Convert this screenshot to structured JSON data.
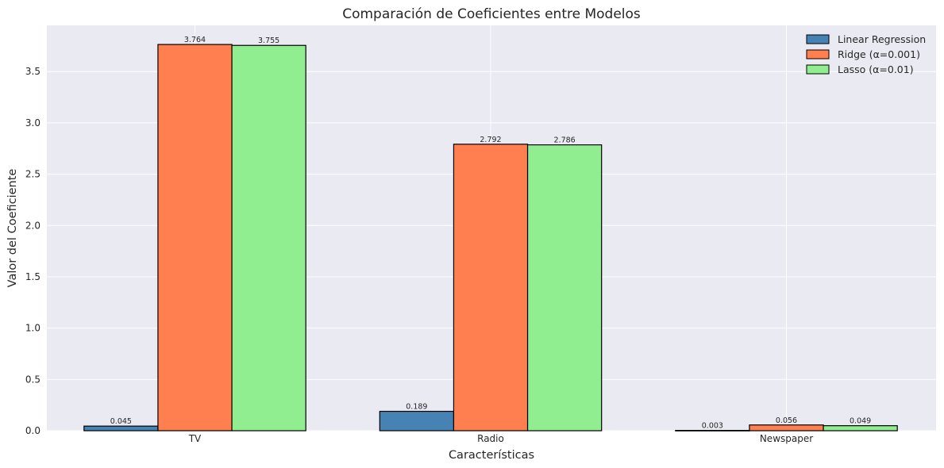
{
  "chart_data": {
    "type": "bar",
    "title": "Comparación de Coeficientes entre Modelos",
    "xlabel": "Características",
    "ylabel": "Valor del Coeficiente",
    "categories": [
      "TV",
      "Radio",
      "Newspaper"
    ],
    "series": [
      {
        "name": "Linear Regression",
        "values": [
          0.045,
          0.189,
          0.003
        ],
        "labels": [
          "0.045",
          "0.189",
          "0.003"
        ],
        "color": "#4682B4"
      },
      {
        "name": "Ridge (α=0.001)",
        "values": [
          3.764,
          2.792,
          0.056
        ],
        "labels": [
          "3.764",
          "2.792",
          "0.056"
        ],
        "color": "#FF7F50"
      },
      {
        "name": "Lasso (α=0.01)",
        "values": [
          3.755,
          2.786,
          0.049
        ],
        "labels": [
          "3.755",
          "2.786",
          "0.049"
        ],
        "color": "#90EE90"
      }
    ],
    "ylim": [
      0,
      3.95
    ],
    "yticks": [
      0.0,
      0.5,
      1.0,
      1.5,
      2.0,
      2.5,
      3.0,
      3.5
    ],
    "ytick_labels": [
      "0.0",
      "0.5",
      "1.0",
      "1.5",
      "2.0",
      "2.5",
      "3.0",
      "3.5"
    ],
    "grid": true,
    "legend_position": "top-right",
    "background_color": "#EAEAF2",
    "grid_color": "#FFFFFF",
    "bar_edge_color": "#000000"
  }
}
